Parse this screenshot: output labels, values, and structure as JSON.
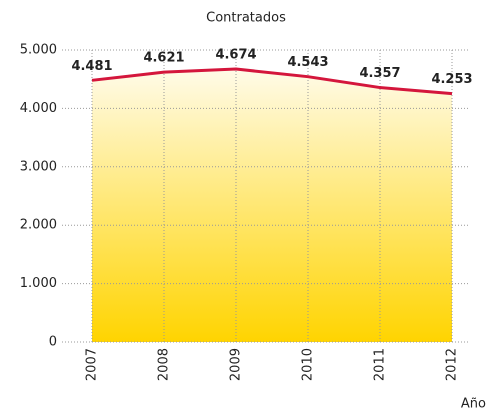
{
  "chart_data": {
    "type": "area",
    "title": "Contratados",
    "x_label": "Año",
    "categories": [
      "2007",
      "2008",
      "2009",
      "2010",
      "2011",
      "2012"
    ],
    "series": [
      {
        "name": "Contratados",
        "color": "#d4163c",
        "values": [
          4481,
          4621,
          4674,
          4543,
          4357,
          4253
        ],
        "value_labels": [
          "4.481",
          "4.621",
          "4.674",
          "4.543",
          "4.357",
          "4.253"
        ]
      }
    ],
    "ylim": [
      0,
      5000
    ],
    "yticks": [
      0,
      {
        "value": 1000,
        "label": "1.000"
      },
      {
        "value": 2000,
        "label": "2.000"
      },
      {
        "value": 3000,
        "label": "3.000"
      },
      {
        "value": 4000,
        "label": "4.000"
      },
      {
        "value": 5000,
        "label": "5.000"
      }
    ],
    "grid": true
  }
}
